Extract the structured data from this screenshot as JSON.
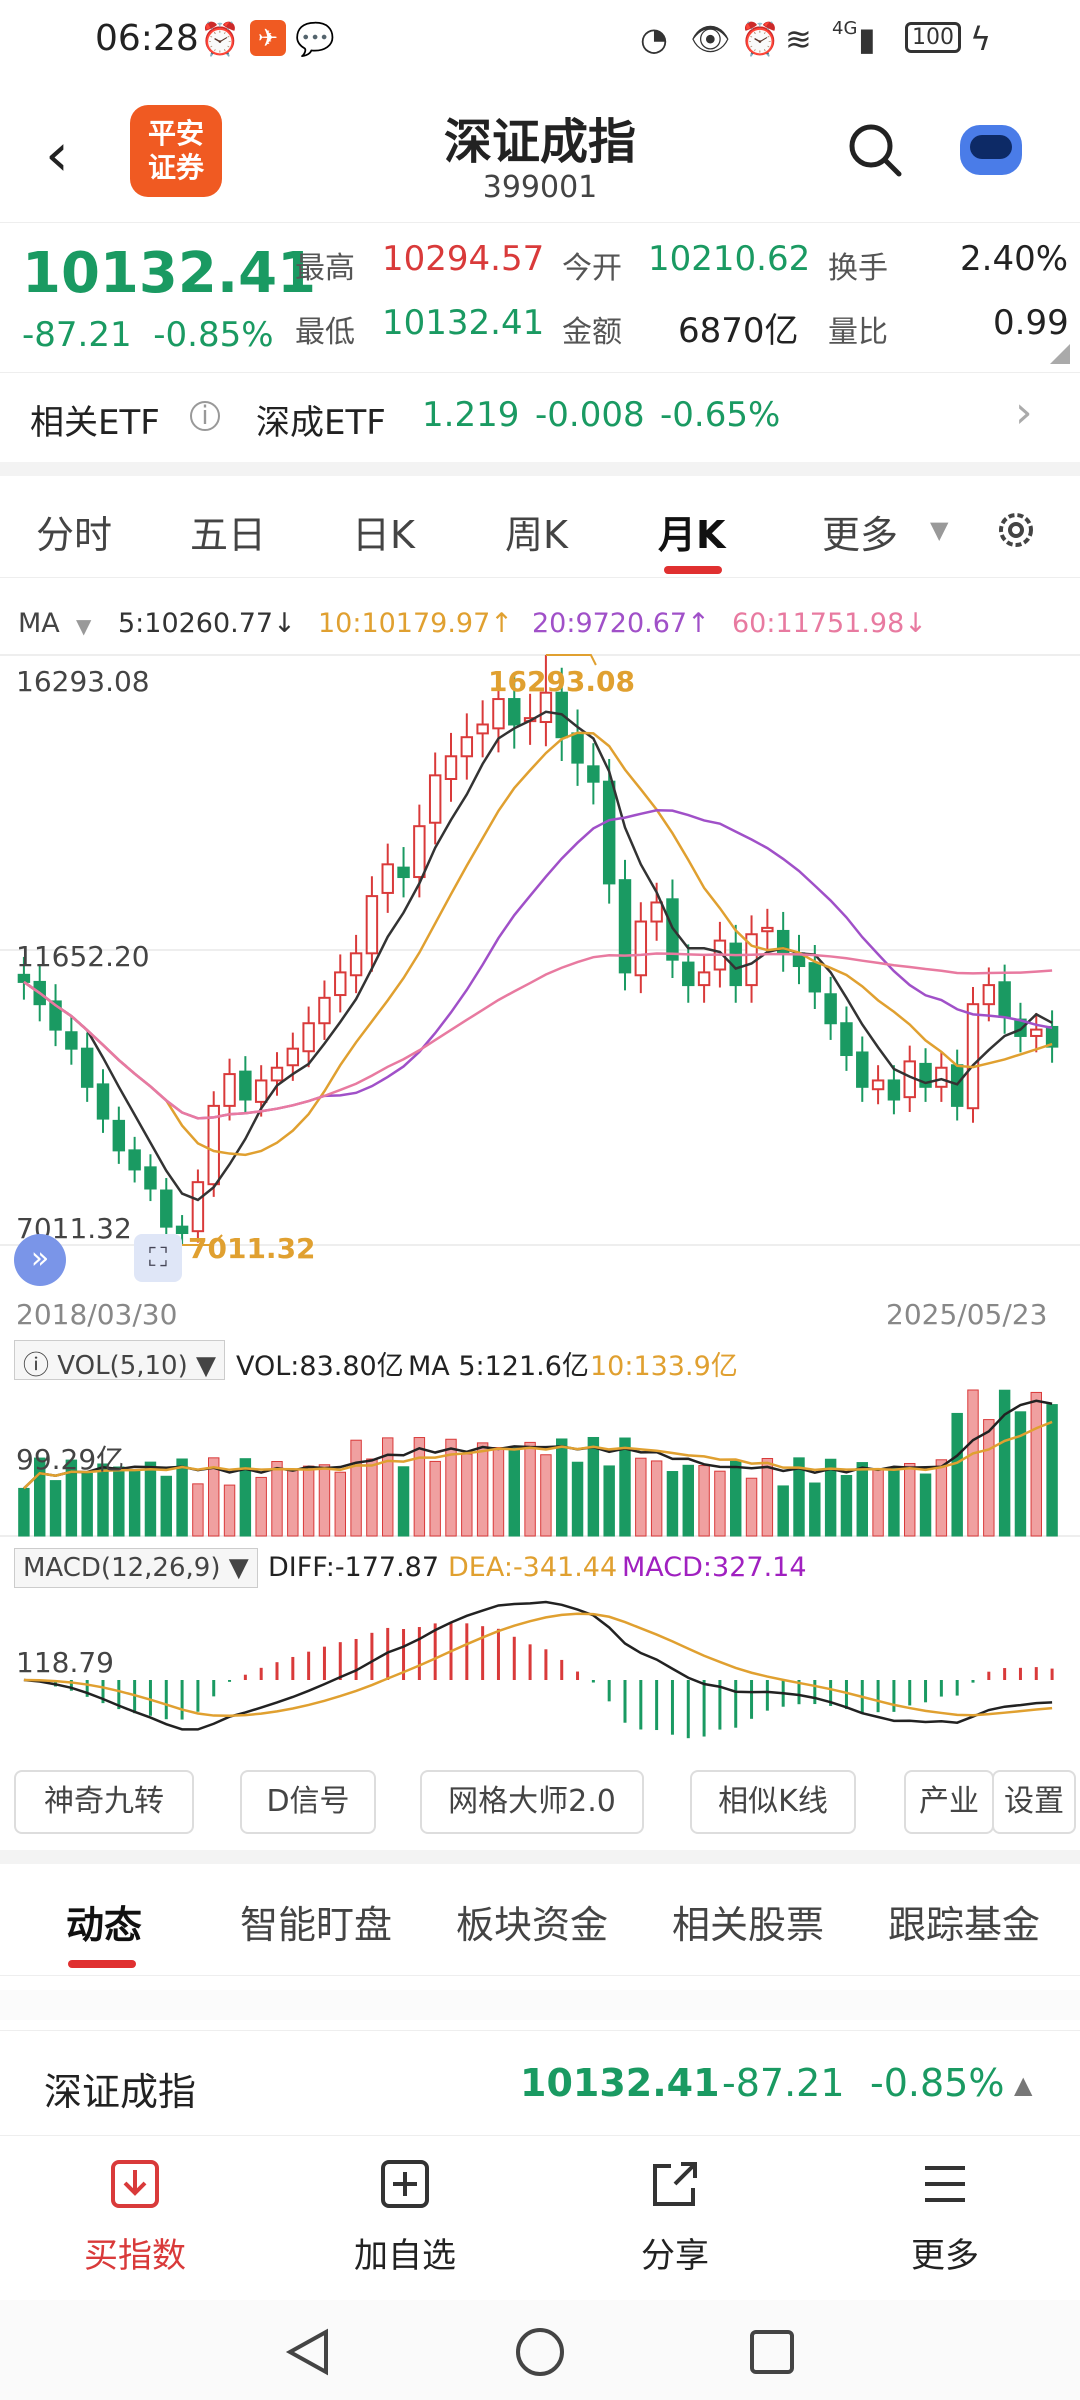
{
  "status_bar": {
    "time": "06:28",
    "network": "4G",
    "battery": "100"
  },
  "header": {
    "title": "深证成指",
    "code": "399001",
    "logo_line1": "平安",
    "logo_line2": "证券"
  },
  "quote": {
    "price": "10132.41",
    "change": "-87.21",
    "change_pct": "-0.85%",
    "high_label": "最高",
    "high": "10294.57",
    "open_label": "今开",
    "open": "10210.62",
    "turnover_label": "换手",
    "turnover": "2.40%",
    "low_label": "最低",
    "low": "10132.41",
    "amount_label": "金额",
    "amount": "6870亿",
    "vol_ratio_label": "量比",
    "vol_ratio": "0.99"
  },
  "etf": {
    "label": "相关ETF",
    "name": "深成ETF",
    "price": "1.219",
    "change": "-0.008",
    "change_pct": "-0.65%"
  },
  "periods": [
    "分时",
    "五日",
    "日K",
    "周K",
    "月K",
    "更多"
  ],
  "active_period": "月K",
  "ma_legend": {
    "label": "MA",
    "ma5": "5:10260.77↓",
    "ma10": "10:10179.97↑",
    "ma20": "20:9720.67↑",
    "ma60": "60:11751.98↓",
    "colors": {
      "ma5": "#333333",
      "ma10": "#e0a030",
      "ma20": "#a050c8",
      "ma60": "#e87aa0"
    }
  },
  "price_axis": {
    "top": "16293.08",
    "mid": "11652.20",
    "bottom": "7011.32"
  },
  "annotations": {
    "high_mark": "16293.08",
    "low_mark": "7011.32"
  },
  "date_axis": {
    "start": "2018/03/30",
    "end": "2025/05/23"
  },
  "volume": {
    "box": "VOL(5,10)",
    "vol": "VOL:83.80亿",
    "ma5": "MA 5:121.6亿",
    "ma10": "10:133.9亿",
    "axis": "99.29亿"
  },
  "macd": {
    "box": "MACD(12,26,9)",
    "diff": "DIFF:-177.87",
    "dea": "DEA:-341.44",
    "macd": "MACD:327.14",
    "axis": "118.79"
  },
  "tools": [
    "神奇九转",
    "D信号",
    "网格大师2.0",
    "相似K线",
    "产业",
    "设置"
  ],
  "subtabs": [
    "动态",
    "智能盯盘",
    "板块资金",
    "相关股票",
    "跟踪基金"
  ],
  "active_subtab": "动态",
  "bottom_quote": {
    "name": "深证成指",
    "price": "10132.41",
    "change": "-87.21",
    "change_pct": "-0.85%"
  },
  "actions": [
    "买指数",
    "加自选",
    "分享",
    "更多"
  ],
  "chart_data": {
    "type": "candlestick",
    "period": "monthly",
    "x_range": [
      "2018/03/30",
      "2025/05/23"
    ],
    "ylim": [
      7011.32,
      16293.08
    ],
    "y_labels": [
      16293.08,
      11652.2,
      7011.32
    ],
    "high_point": 16293.08,
    "low_point": 7011.32,
    "closes": [
      11150,
      10800,
      10400,
      10100,
      9500,
      9000,
      8500,
      8200,
      7900,
      7300,
      7200,
      8000,
      9200,
      9700,
      9300,
      9600,
      9800,
      10100,
      10500,
      10900,
      11300,
      11600,
      12500,
      13000,
      12800,
      13600,
      14400,
      14700,
      15000,
      15200,
      15600,
      15200,
      15300,
      15700,
      15000,
      14600,
      14300,
      12700,
      11300,
      12100,
      12400,
      11500,
      11100,
      11300,
      11800,
      11100,
      11900,
      12000,
      11600,
      11400,
      11000,
      10500,
      10000,
      9500,
      9600,
      9300,
      9900,
      9500,
      9800,
      9200,
      10800,
      11100,
      10600,
      10300,
      10400,
      10132
    ]
  }
}
